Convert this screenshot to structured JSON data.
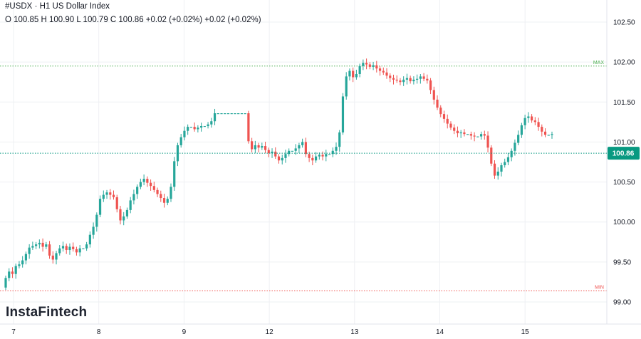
{
  "header": {
    "symbol": "#USDX",
    "separator": "·",
    "timeframe": "H1",
    "name": "US Dollar Index",
    "ohlc_text": "O 100.85 H 100.90 L 100.79 C 100.86 +0.02 (+0.02%) +0.02 (+0.02%)"
  },
  "logo": "InstaFintech",
  "colors": {
    "up": "#26a69a",
    "down": "#ef5350",
    "grid": "#eef0f3",
    "last_price": "#089981"
  },
  "chart_data": {
    "type": "candlestick",
    "title": "#USDX · H1 US Dollar Index",
    "ylim": [
      98.9,
      102.75
    ],
    "y_ticks": [
      "99.00",
      "99.50",
      "100.00",
      "100.50",
      "101.00",
      "101.50",
      "102.00",
      "102.50"
    ],
    "x_ticks": [
      {
        "label": "7",
        "day": 7
      },
      {
        "label": "8",
        "day": 8
      },
      {
        "label": "9",
        "day": 9
      },
      {
        "label": "12",
        "day": 10
      },
      {
        "label": "13",
        "day": 11
      },
      {
        "label": "14",
        "day": 12
      },
      {
        "label": "15",
        "day": 13
      }
    ],
    "levels": [
      {
        "label": "MAX",
        "value": 101.95,
        "color": "#4caf50"
      },
      {
        "label": "MIN",
        "value": 99.14,
        "color": "#ef5350"
      }
    ],
    "last_price": {
      "label": "100.86",
      "value": 100.86
    },
    "start_price": 99.18,
    "moves": [
      0.12,
      0.08,
      -0.03,
      0.1,
      0.02,
      0.05,
      0.08,
      0.08,
      0.02,
      0.02,
      0.02,
      -0.05,
      0.03,
      -0.14,
      -0.05,
      0.08,
      0.06,
      0.03,
      -0.05,
      0.04,
      -0.03,
      -0.04,
      0.05,
      0.0,
      0.05,
      0.12,
      0.1,
      0.15,
      0.2,
      0.05,
      0.03,
      -0.03,
      -0.03,
      -0.15,
      -0.14,
      0.05,
      0.08,
      0.12,
      0.08,
      0.09,
      0.06,
      0.04,
      -0.05,
      -0.04,
      -0.05,
      -0.05,
      -0.05,
      -0.06,
      0.05,
      0.15,
      0.32,
      0.2,
      0.1,
      0.08,
      0.05,
      0.0,
      -0.03,
      0.02,
      0.02,
      0.0,
      0.02,
      0.04,
      0.1,
      0.0,
      0.0,
      0.0,
      0.0,
      0.0,
      0.0,
      0.0,
      0.0,
      0.0,
      -0.35,
      -0.1,
      0.05,
      -0.03,
      0.02,
      -0.05,
      -0.04,
      0.02,
      -0.06,
      -0.05,
      0.03,
      0.05,
      0.04,
      0.0,
      0.03,
      0.04,
      0.04,
      -0.15,
      -0.05,
      -0.03,
      0.05,
      0.02,
      -0.02,
      0.03,
      0.0,
      0.04,
      0.05,
      0.18,
      0.45,
      0.25,
      0.07,
      -0.08,
      0.04,
      0.1,
      0.04,
      -0.02,
      -0.03,
      0.02,
      -0.04,
      -0.03,
      -0.02,
      -0.04,
      -0.03,
      -0.02,
      -0.01,
      -0.02,
      0.03,
      0.02,
      -0.04,
      0.02,
      0.01,
      0.03,
      -0.03,
      -0.02,
      -0.12,
      -0.12,
      -0.1,
      -0.08,
      -0.06,
      -0.06,
      -0.05,
      -0.04,
      -0.03,
      0.01,
      -0.02,
      0.0,
      -0.02,
      -0.01,
      0.0,
      0.03,
      -0.02,
      -0.15,
      -0.2,
      -0.15,
      0.05,
      0.08,
      0.04,
      0.06,
      0.08,
      0.1,
      0.1,
      0.12,
      0.09,
      0.02,
      -0.05,
      -0.02,
      -0.06,
      -0.06,
      -0.04,
      0.0,
      0.01
    ]
  }
}
